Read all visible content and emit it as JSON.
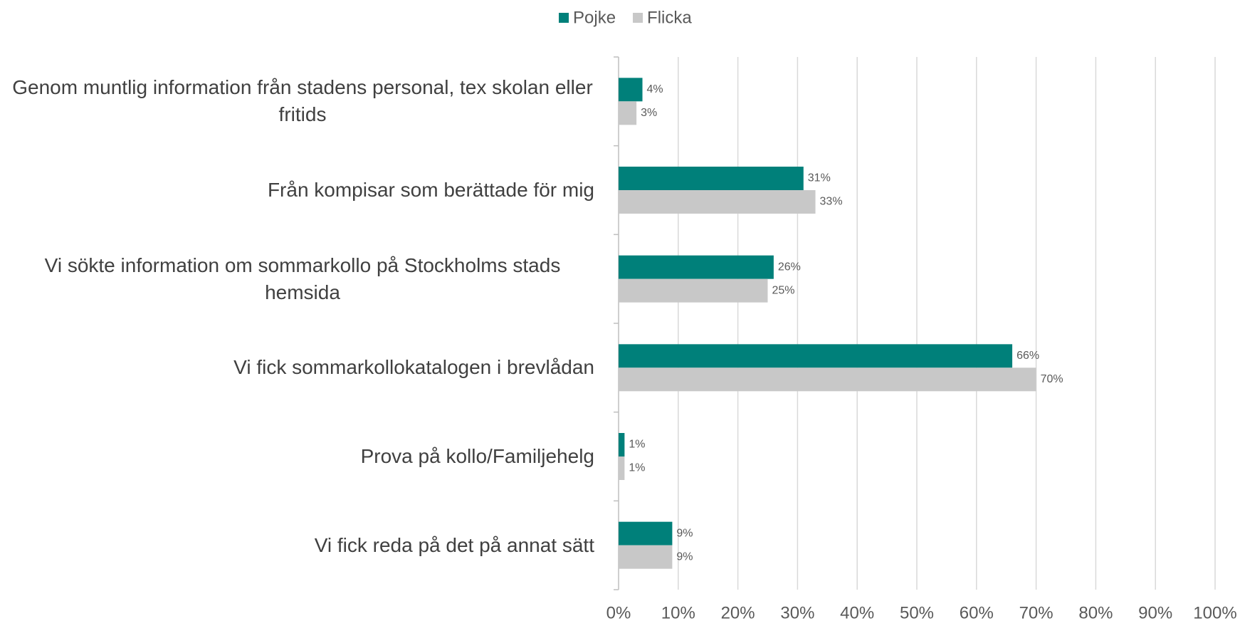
{
  "chart_data": {
    "type": "barh",
    "categories": [
      "Genom muntlig information från stadens personal, tex skolan eller fritids",
      "Från kompisar som berättade för mig",
      "Vi sökte information om sommarkollo på Stockholms stads hemsida",
      "Vi fick sommarkollokatalogen i brevlådan",
      "Prova på kollo/Familjehelg",
      "Vi fick reda på det på annat sätt"
    ],
    "series": [
      {
        "name": "Pojke",
        "color": "#00807a",
        "values": [
          4,
          31,
          26,
          66,
          1,
          9
        ],
        "value_labels": [
          "4%",
          "31%",
          "26%",
          "66%",
          "1%",
          "9%"
        ]
      },
      {
        "name": "Flicka",
        "color": "#c8c8c8",
        "values": [
          3,
          33,
          25,
          70,
          1,
          9
        ],
        "value_labels": [
          "3%",
          "33%",
          "25%",
          "70%",
          "1%",
          "9%"
        ]
      }
    ],
    "xlim": [
      0,
      100
    ],
    "xticks": [
      {
        "value": 0,
        "label": "0%"
      },
      {
        "value": 10,
        "label": "10%"
      },
      {
        "value": 20,
        "label": "20%"
      },
      {
        "value": 30,
        "label": "30%"
      },
      {
        "value": 40,
        "label": "40%"
      },
      {
        "value": 50,
        "label": "50%"
      },
      {
        "value": 60,
        "label": "60%"
      },
      {
        "value": 70,
        "label": "70%"
      },
      {
        "value": 80,
        "label": "80%"
      },
      {
        "value": 90,
        "label": "90%"
      },
      {
        "value": 100,
        "label": "100%"
      }
    ],
    "grid": true,
    "legend": "top"
  }
}
